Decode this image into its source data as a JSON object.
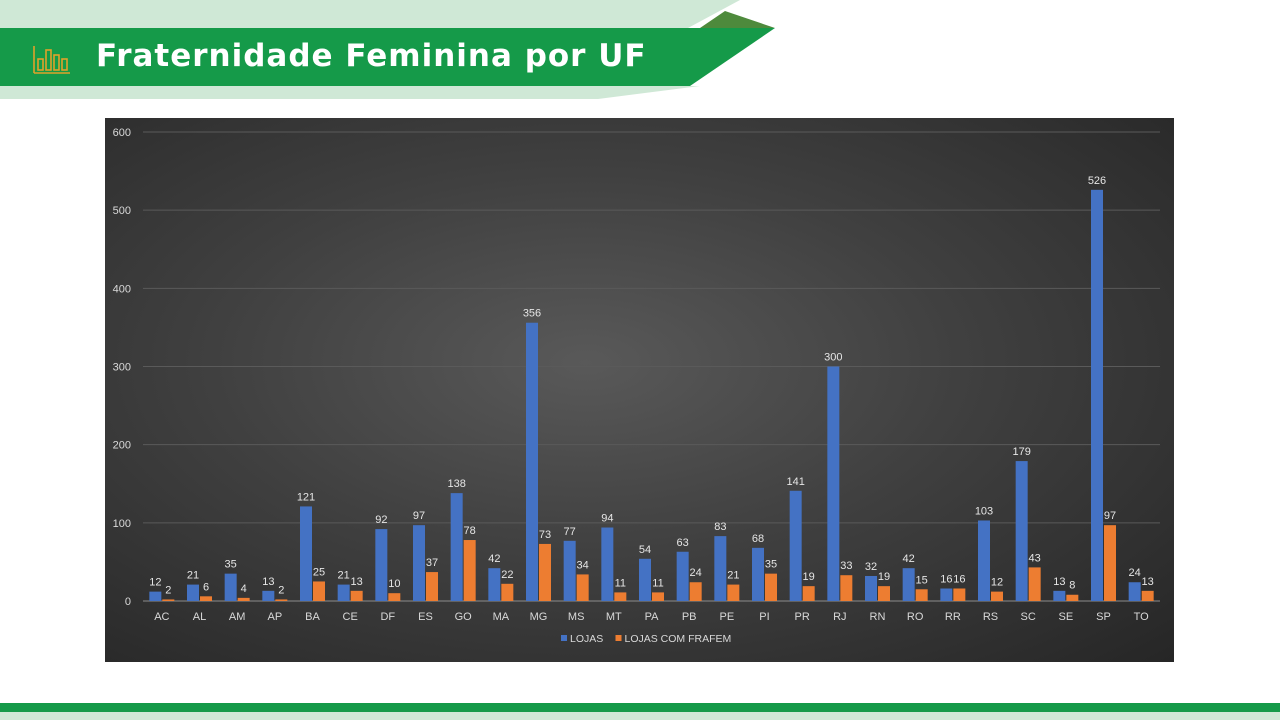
{
  "header": {
    "title": "Fraternidade Feminina por UF",
    "icon": "bar-chart-icon",
    "colors": {
      "green": "#159a49",
      "light_green": "#cfe8d6",
      "olive": "#4e8a3c",
      "icon_gold": "#e0a22a"
    }
  },
  "chart_data": {
    "type": "bar",
    "categories": [
      "AC",
      "AL",
      "AM",
      "AP",
      "BA",
      "CE",
      "DF",
      "ES",
      "GO",
      "MA",
      "MG",
      "MS",
      "MT",
      "PA",
      "PB",
      "PE",
      "PI",
      "PR",
      "RJ",
      "RN",
      "RO",
      "RR",
      "RS",
      "SC",
      "SE",
      "SP",
      "TO"
    ],
    "series": [
      {
        "name": "LOJAS",
        "color": "#4472c4",
        "values": [
          12,
          21,
          35,
          13,
          121,
          21,
          92,
          97,
          138,
          42,
          356,
          77,
          94,
          54,
          63,
          83,
          68,
          141,
          300,
          32,
          42,
          16,
          103,
          179,
          13,
          526,
          24
        ]
      },
      {
        "name": "LOJAS COM FRAFEM",
        "color": "#ed7d31",
        "values": [
          2,
          6,
          4,
          2,
          25,
          13,
          10,
          37,
          78,
          22,
          73,
          34,
          11,
          11,
          24,
          21,
          35,
          19,
          33,
          19,
          15,
          16,
          12,
          43,
          8,
          97,
          13
        ]
      }
    ],
    "y_ticks": [
      0,
      100,
      200,
      300,
      400,
      500,
      600
    ],
    "ylim": [
      0,
      600
    ],
    "grid": true,
    "data_labels": true,
    "legend": "bottom-center"
  }
}
